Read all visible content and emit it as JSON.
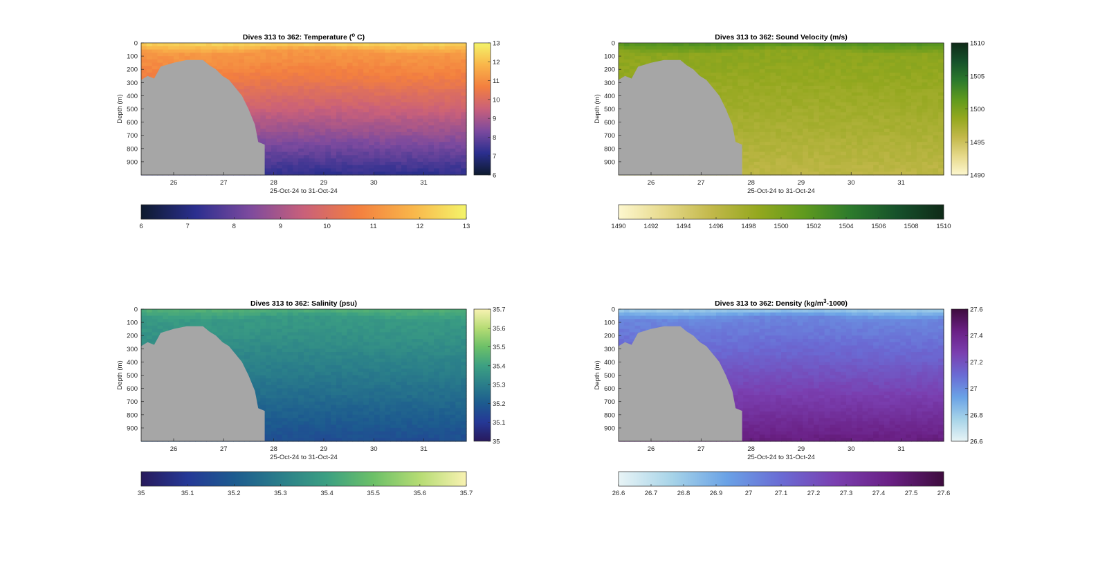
{
  "figure": {
    "x_tick_labels": [
      "26",
      "27",
      "28",
      "29",
      "30",
      "31"
    ],
    "x_label": "25-Oct-24 to 31-Oct-24",
    "y_label": "Depth (m)",
    "terrain_color": "#a6a6a6"
  },
  "chart_data": [
    {
      "type": "heatmap",
      "title": "Dives 313 to 362: Temperature (",
      "title_sup": "o",
      "title_suffix": " C)",
      "xlabel": "25-Oct-24 to 31-Oct-24",
      "ylabel": "Depth (m)",
      "x_range_days": [
        25.35,
        31.85
      ],
      "y_ticks": [
        0,
        100,
        200,
        300,
        400,
        500,
        600,
        700,
        800,
        900
      ],
      "ylim": [
        0,
        1000
      ],
      "colorbar_range": [
        6,
        13
      ],
      "colorbar_ticks": [
        6,
        7,
        8,
        9,
        10,
        11,
        12,
        13
      ],
      "h_colorbar_ticks": [
        "6",
        "7",
        "8",
        "9",
        "10",
        "11",
        "12",
        "13"
      ],
      "colormap": [
        "#0d1a2e",
        "#2b2f8f",
        "#7c4a9e",
        "#c9607a",
        "#f37f3f",
        "#f9b54a",
        "#f4f46a"
      ],
      "profile": {
        "surface": 12.5,
        "mixed_layer": 11.2,
        "deep": 7.2
      }
    },
    {
      "type": "heatmap",
      "title": "Dives 313 to 362: Sound Velocity (m/s)",
      "xlabel": "25-Oct-24 to 31-Oct-24",
      "ylabel": "Depth (m)",
      "x_range_days": [
        25.35,
        31.85
      ],
      "y_ticks": [
        0,
        100,
        200,
        300,
        400,
        500,
        600,
        700,
        800,
        900
      ],
      "ylim": [
        0,
        1000
      ],
      "colorbar_range": [
        1490,
        1510
      ],
      "colorbar_ticks": [
        1490,
        1495,
        1500,
        1505,
        1510
      ],
      "h_colorbar_ticks": [
        "1490",
        "1492",
        "1494",
        "1496",
        "1498",
        "1500",
        "1502",
        "1504",
        "1506",
        "1508",
        "1510"
      ],
      "colormap": [
        "#fdf7cf",
        "#e6d98a",
        "#c2b84a",
        "#94a81f",
        "#5f9a1e",
        "#2c7a2c",
        "#16512b",
        "#0f2a18"
      ],
      "profile": {
        "surface": 1502.5,
        "mixed_layer": 1499.0,
        "deep": 1496.0
      }
    },
    {
      "type": "heatmap",
      "title": "Dives 313 to 362: Salinity (psu)",
      "xlabel": "25-Oct-24 to 31-Oct-24",
      "ylabel": "Depth (m)",
      "x_range_days": [
        25.35,
        31.85
      ],
      "y_ticks": [
        0,
        100,
        200,
        300,
        400,
        500,
        600,
        700,
        800,
        900
      ],
      "ylim": [
        0,
        1000
      ],
      "colorbar_range": [
        35,
        35.7
      ],
      "colorbar_ticks": [
        35,
        35.1,
        35.2,
        35.3,
        35.4,
        35.5,
        35.6,
        35.7
      ],
      "h_colorbar_ticks": [
        "35",
        "35.1",
        "35.2",
        "35.3",
        "35.4",
        "35.5",
        "35.6",
        "35.7"
      ],
      "colormap": [
        "#281a5c",
        "#253896",
        "#1d5b8f",
        "#2a7e8a",
        "#3ca082",
        "#6cc068",
        "#b6dc74",
        "#f8f2b2"
      ],
      "profile": {
        "surface": 35.45,
        "mixed_layer": 35.38,
        "deep": 35.16
      }
    },
    {
      "type": "heatmap",
      "title": "Dives 313 to 362: Density (kg/m",
      "title_sup": "3",
      "title_suffix": "-1000)",
      "xlabel": "25-Oct-24 to 31-Oct-24",
      "ylabel": "Depth (m)",
      "x_range_days": [
        25.35,
        31.85
      ],
      "y_ticks": [
        0,
        100,
        200,
        300,
        400,
        500,
        600,
        700,
        800,
        900
      ],
      "ylim": [
        0,
        1000
      ],
      "colorbar_range": [
        26.6,
        27.6
      ],
      "colorbar_ticks": [
        "26.6",
        "26.8",
        "27",
        "27.2",
        "27.4",
        "27.6"
      ],
      "h_colorbar_ticks": [
        "26.6",
        "26.7",
        "26.8",
        "26.9",
        "27",
        "27.1",
        "27.2",
        "27.3",
        "27.4",
        "27.5",
        "27.6"
      ],
      "colormap": [
        "#e8f4f6",
        "#a6d3e8",
        "#6aa2e6",
        "#6a6bd4",
        "#7a3fb0",
        "#6a2085",
        "#3e0c3e"
      ],
      "profile": {
        "surface": 26.78,
        "mixed_layer": 27.02,
        "deep": 27.45
      }
    }
  ]
}
